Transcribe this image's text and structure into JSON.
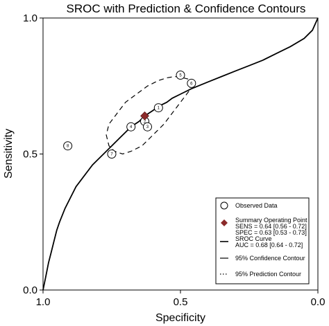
{
  "chart_data": {
    "type": "scatter",
    "title": "SROC with Prediction & Confidence Contours",
    "xlabel": "Specificity",
    "ylabel": "Sensitivity",
    "x_reversed": true,
    "xlim": [
      1.0,
      0.0
    ],
    "ylim": [
      0.0,
      1.0
    ],
    "xticks": [
      {
        "value": 1.0,
        "label": "1.0"
      },
      {
        "value": 0.5,
        "label": "0.5"
      },
      {
        "value": 0.0,
        "label": "0.0"
      }
    ],
    "yticks": [
      {
        "value": 0.0,
        "label": "0.0"
      },
      {
        "value": 0.5,
        "label": "0.5"
      },
      {
        "value": 1.0,
        "label": "1.0"
      }
    ],
    "observed_data": [
      {
        "label": "1",
        "specificity": 0.58,
        "sensitivity": 0.67
      },
      {
        "label": "2",
        "specificity": 0.63,
        "sensitivity": 0.62
      },
      {
        "label": "3",
        "specificity": 0.62,
        "sensitivity": 0.6
      },
      {
        "label": "4",
        "specificity": 0.68,
        "sensitivity": 0.6
      },
      {
        "label": "5",
        "specificity": 0.5,
        "sensitivity": 0.79
      },
      {
        "label": "6",
        "specificity": 0.46,
        "sensitivity": 0.76
      },
      {
        "label": "7",
        "specificity": 0.75,
        "sensitivity": 0.5
      },
      {
        "label": "8",
        "specificity": 0.91,
        "sensitivity": 0.53
      }
    ],
    "summary_point": {
      "specificity": 0.63,
      "sensitivity": 0.64
    },
    "sroc_curve": {
      "specificity": [
        1.0,
        0.99,
        0.98,
        0.97,
        0.96,
        0.95,
        0.94,
        0.92,
        0.9,
        0.88,
        0.85,
        0.82,
        0.8,
        0.77,
        0.75,
        0.72,
        0.7,
        0.68,
        0.65,
        0.63,
        0.6,
        0.58,
        0.55,
        0.53,
        0.5,
        0.46,
        0.4,
        0.35,
        0.3,
        0.25,
        0.2,
        0.15,
        0.1,
        0.05,
        0.02,
        0.0
      ],
      "sensitivity": [
        0.0,
        0.05,
        0.1,
        0.14,
        0.18,
        0.22,
        0.25,
        0.3,
        0.34,
        0.38,
        0.42,
        0.46,
        0.48,
        0.51,
        0.53,
        0.56,
        0.58,
        0.6,
        0.62,
        0.64,
        0.66,
        0.675,
        0.69,
        0.705,
        0.72,
        0.74,
        0.765,
        0.785,
        0.805,
        0.825,
        0.845,
        0.87,
        0.895,
        0.925,
        0.955,
        1.0
      ]
    },
    "confidence_contour": {
      "specificity": [
        0.46,
        0.47,
        0.5,
        0.53,
        0.56,
        0.6,
        0.64,
        0.68,
        0.71,
        0.74,
        0.76,
        0.77,
        0.76,
        0.73,
        0.7,
        0.66,
        0.62,
        0.58,
        0.55,
        0.52,
        0.49,
        0.47,
        0.46
      ],
      "sensitivity": [
        0.76,
        0.73,
        0.69,
        0.65,
        0.61,
        0.57,
        0.53,
        0.51,
        0.5,
        0.51,
        0.53,
        0.57,
        0.61,
        0.65,
        0.69,
        0.72,
        0.75,
        0.77,
        0.78,
        0.785,
        0.78,
        0.775,
        0.76
      ]
    },
    "legend": {
      "position": "bottom-right",
      "items": [
        {
          "symbol": "circle",
          "text": [
            "Observed Data"
          ]
        },
        {
          "symbol": "diamond",
          "text": [
            "Summary Operating Point",
            "SENS = 0.64 [0.56 - 0.72]",
            "SPEC = 0.63 [0.53 - 0.73]"
          ]
        },
        {
          "symbol": "solid-line",
          "text": [
            "SROC Curve",
            "AUC = 0.68 [0.64 - 0.72]"
          ]
        },
        {
          "symbol": "dash-line",
          "text": [
            "95% Confidence Contour"
          ]
        },
        {
          "symbol": "dot-line",
          "text": [
            "95% Prediction Contour"
          ]
        }
      ]
    },
    "colors": {
      "summary_point": "#8b2a2a",
      "line": "#000000",
      "background": "#ffffff"
    }
  }
}
